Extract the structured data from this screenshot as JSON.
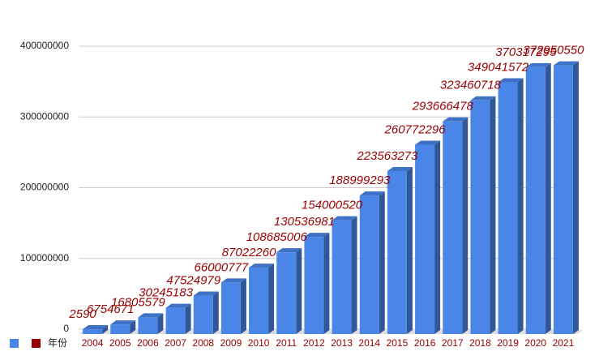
{
  "chart_data": {
    "type": "bar3d",
    "categories": [
      "2004",
      "2005",
      "2006",
      "2007",
      "2008",
      "2009",
      "2010",
      "2011",
      "2012",
      "2013",
      "2014",
      "2015",
      "2016",
      "2017",
      "2018",
      "2019",
      "2020",
      "2021"
    ],
    "series": [
      {
        "color": "#4a86e8",
        "values": [
          2590,
          6754671,
          16805579,
          30245183,
          47524979,
          66000777,
          87022260,
          108685006,
          130536981,
          154000520,
          188999293,
          223563273,
          260772296,
          293666478,
          323460718,
          349041572,
          370317295,
          372950550
        ]
      }
    ],
    "legend": [
      {
        "color": "#4a86e8"
      },
      {
        "name": "年份",
        "color": "#990000"
      }
    ],
    "ylim": [
      0,
      400000000
    ],
    "yticks": [
      0,
      100000000,
      200000000,
      300000000,
      400000000
    ],
    "grid": true
  }
}
